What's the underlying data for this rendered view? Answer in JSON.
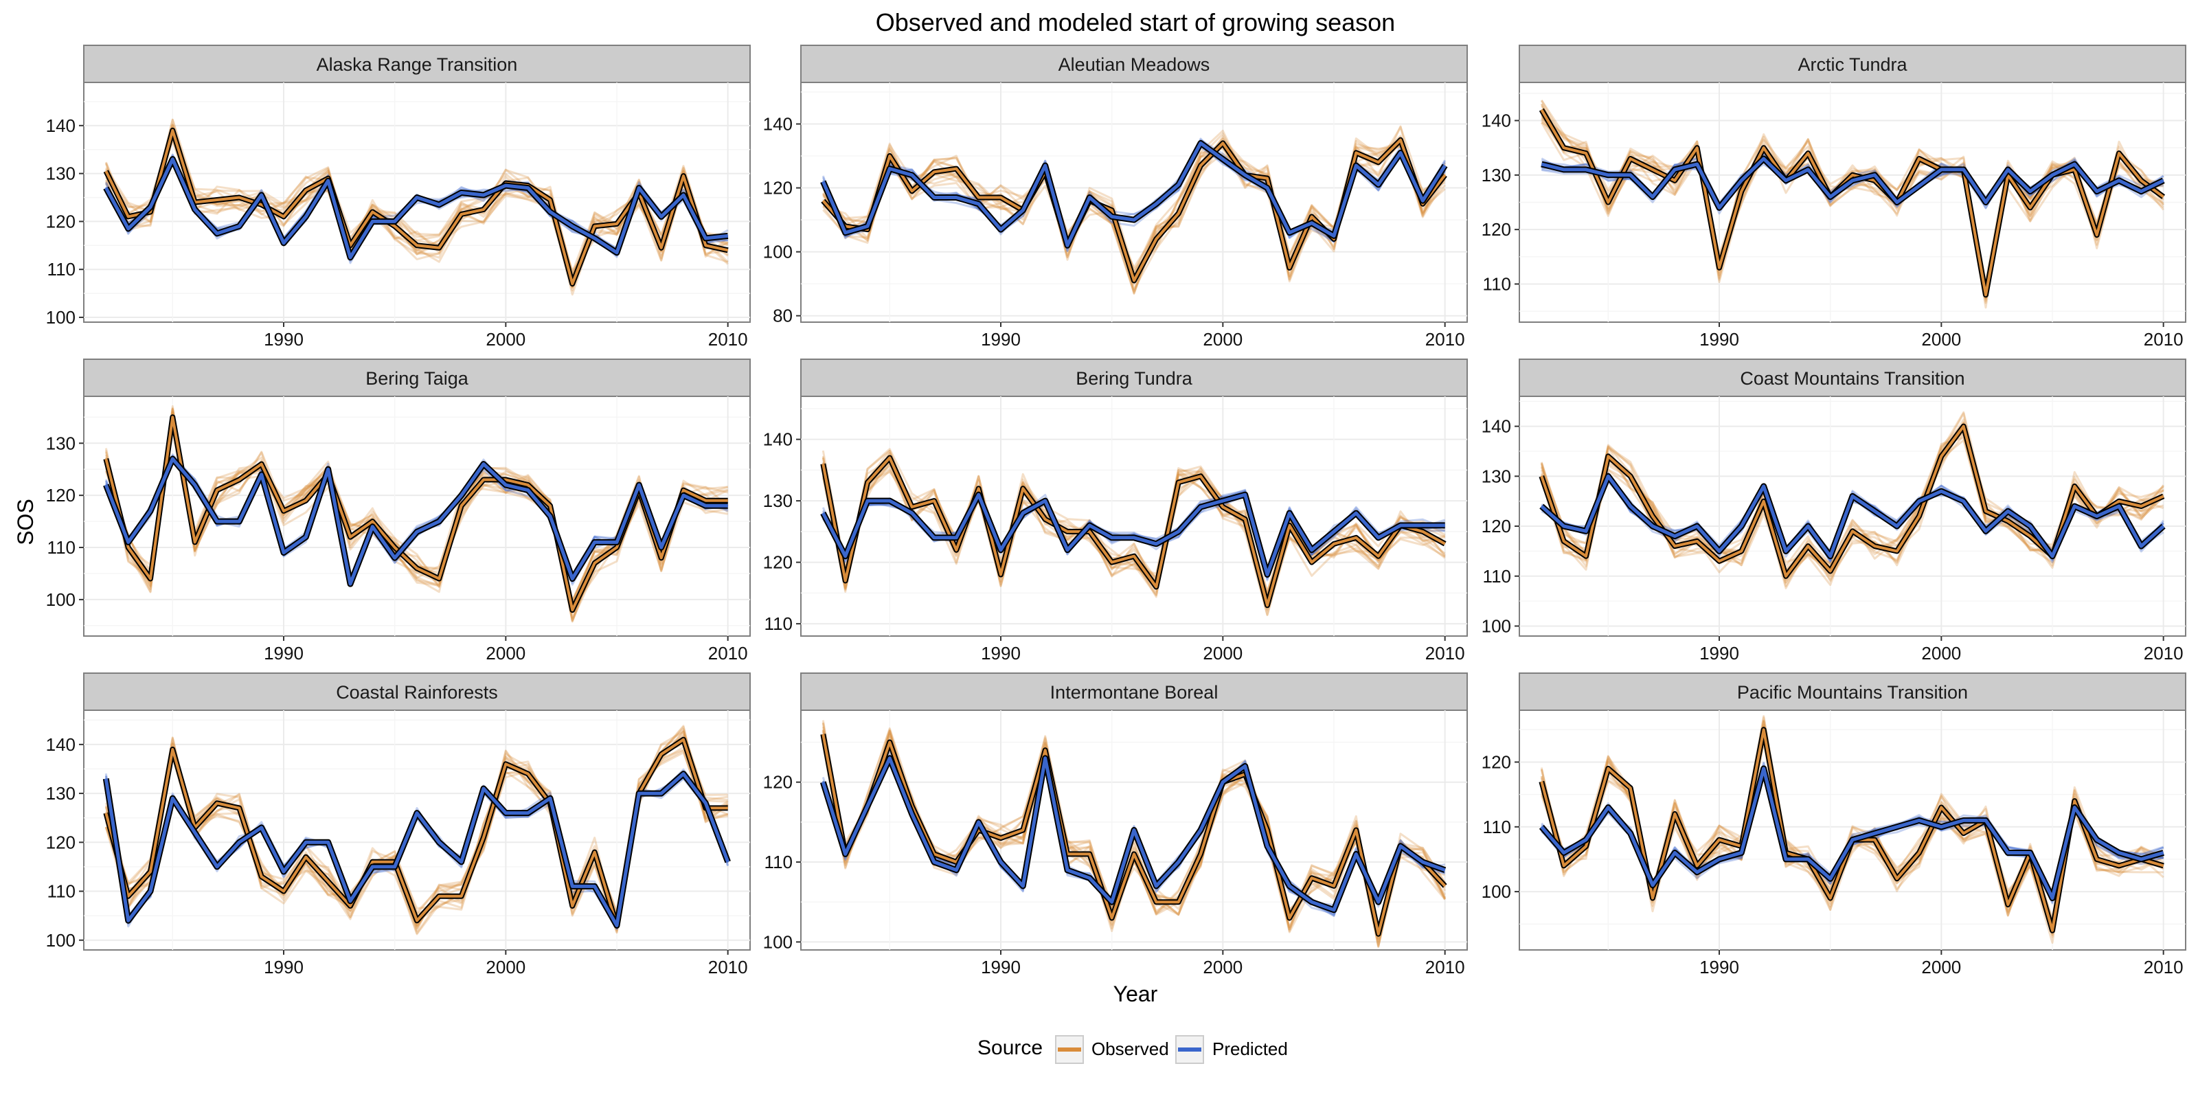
{
  "chart_data": {
    "type": "line",
    "title": "Observed and modeled start of growing season",
    "xlabel": "Year",
    "ylabel": "SOS",
    "legend": {
      "title": "Source",
      "position": "bottom",
      "entries": [
        {
          "name": "Observed",
          "color": "#d98c3a"
        },
        {
          "name": "Predicted",
          "color": "#3a66cc"
        }
      ]
    },
    "colors": {
      "observed": "#d98c3a",
      "predicted": "#3a66cc",
      "mean_outline": "#000000"
    },
    "years": [
      1982,
      1983,
      1984,
      1985,
      1986,
      1987,
      1988,
      1989,
      1990,
      1991,
      1992,
      1993,
      1994,
      1995,
      1996,
      1997,
      1998,
      1999,
      2000,
      2001,
      2002,
      2003,
      2004,
      2005,
      2006,
      2007,
      2008,
      2009,
      2010
    ],
    "xlim": [
      1981,
      2011
    ],
    "xticks": [
      1990,
      2000,
      2010
    ],
    "panels": [
      {
        "name": "Alaska Range Transition",
        "ylim": [
          99,
          149
        ],
        "yticks": [
          100,
          110,
          120,
          130,
          140
        ],
        "observed": [
          130.5,
          121,
          122,
          139,
          124,
          124.5,
          125,
          123.5,
          121,
          126.5,
          129,
          115,
          122,
          119,
          115,
          114.5,
          121.5,
          122.5,
          128,
          127.5,
          124.5,
          107,
          119,
          119.5,
          126,
          114.5,
          129.5,
          115,
          114
        ],
        "predicted": [
          127,
          118.5,
          123,
          133,
          122.5,
          117.5,
          119,
          125.5,
          115.5,
          121,
          128.5,
          112.5,
          120,
          120,
          125,
          123.5,
          126,
          125.5,
          127.5,
          127,
          122,
          119,
          116.5,
          113.5,
          127,
          121,
          125.5,
          116.5,
          117
        ]
      },
      {
        "name": "Aleutian Meadows",
        "ylim": [
          78,
          153
        ],
        "yticks": [
          80,
          100,
          120,
          140
        ],
        "observed": [
          116,
          108,
          107,
          130,
          119,
          125,
          126,
          117,
          117,
          113,
          125,
          102,
          116,
          113,
          91,
          104,
          112,
          127,
          134,
          124,
          123,
          95,
          111,
          104,
          131,
          128,
          135,
          115,
          124
        ],
        "predicted": [
          122,
          106,
          108,
          126,
          124,
          117,
          117,
          115,
          107,
          113,
          127,
          102,
          117,
          111,
          110,
          115,
          121,
          134,
          129,
          124,
          120,
          106,
          109,
          105,
          127,
          121,
          131,
          116,
          127
        ]
      },
      {
        "name": "Arctic Tundra",
        "ylim": [
          103,
          147
        ],
        "yticks": [
          110,
          120,
          130,
          140
        ],
        "observed": [
          142,
          135,
          134,
          125,
          133,
          131,
          129,
          135,
          113,
          127,
          135,
          129,
          134,
          126,
          130,
          129,
          125,
          133,
          131,
          131,
          108,
          130,
          124,
          130,
          131,
          119,
          134,
          129,
          126
        ],
        "predicted": [
          132,
          131,
          131,
          130,
          130,
          126,
          131,
          132,
          124,
          129,
          133,
          129,
          131,
          126,
          129,
          130,
          125,
          128,
          131,
          131,
          125,
          131,
          127,
          130,
          132,
          127,
          129,
          127,
          129
        ]
      },
      {
        "name": "Bering Taiga",
        "ylim": [
          93,
          139
        ],
        "yticks": [
          100,
          110,
          120,
          130
        ],
        "observed": [
          127,
          110,
          104,
          135,
          111,
          121,
          123,
          126,
          117,
          119,
          124,
          112,
          115,
          110,
          106,
          104,
          118,
          123,
          123,
          122,
          118,
          98,
          107,
          110,
          121,
          108,
          121,
          119,
          119
        ],
        "predicted": [
          122,
          111,
          117,
          127,
          122,
          115,
          115,
          124,
          109,
          112,
          125,
          103,
          114,
          108,
          113,
          115,
          120,
          126,
          122,
          121,
          116,
          104,
          111,
          111,
          122,
          110,
          120,
          118,
          118
        ]
      },
      {
        "name": "Bering Tundra",
        "ylim": [
          108,
          147
        ],
        "yticks": [
          110,
          120,
          130,
          140
        ],
        "observed": [
          136,
          117,
          133,
          137,
          129,
          130,
          122,
          132,
          118,
          132,
          127,
          125,
          125,
          120,
          121,
          116,
          133,
          134,
          129,
          127,
          113,
          126,
          120,
          123,
          124,
          121,
          126,
          125,
          123
        ],
        "predicted": [
          128,
          121,
          130,
          130,
          128,
          124,
          124,
          131,
          122,
          128,
          130,
          122,
          126,
          124,
          124,
          123,
          125,
          129,
          130,
          131,
          118,
          128,
          122,
          125,
          128,
          124,
          126,
          126,
          126
        ]
      },
      {
        "name": "Coast Mountains Transition",
        "ylim": [
          98,
          146
        ],
        "yticks": [
          100,
          110,
          120,
          130,
          140
        ],
        "observed": [
          130,
          117,
          114,
          134,
          130,
          122,
          116,
          117,
          113,
          115,
          125,
          110,
          116,
          111,
          119,
          116,
          115,
          122,
          134,
          140,
          123,
          121,
          118,
          114,
          128,
          122,
          125,
          124,
          126
        ],
        "predicted": [
          124,
          120,
          119,
          130,
          124,
          120,
          118,
          120,
          115,
          120,
          128,
          115,
          120,
          114,
          126,
          123,
          120,
          125,
          127,
          125,
          119,
          123,
          120,
          114,
          124,
          122,
          124,
          116,
          120
        ]
      },
      {
        "name": "Coastal Rainforests",
        "ylim": [
          98,
          147
        ],
        "yticks": [
          100,
          110,
          120,
          130,
          140
        ],
        "observed": [
          126,
          109,
          114,
          139,
          123,
          128,
          127,
          113,
          110,
          117,
          112,
          107,
          116,
          116,
          104,
          109,
          109,
          121,
          136,
          134,
          128,
          107,
          118,
          103,
          130,
          138,
          141,
          127,
          127
        ],
        "predicted": [
          133,
          104,
          110,
          129,
          122,
          115,
          120,
          123,
          114,
          120,
          120,
          108,
          115,
          115,
          126,
          120,
          116,
          131,
          126,
          126,
          129,
          111,
          111,
          103,
          130,
          130,
          134,
          128,
          116
        ]
      },
      {
        "name": "Intermontane Boreal",
        "ylim": [
          99,
          129
        ],
        "yticks": [
          100,
          110,
          120
        ],
        "observed": [
          126,
          111,
          117,
          125,
          117,
          111,
          110,
          114,
          113,
          114,
          124,
          111,
          111,
          103,
          111,
          105,
          105,
          111,
          120,
          121,
          114,
          103,
          108,
          107,
          114,
          101,
          112,
          110,
          107
        ],
        "predicted": [
          120,
          111,
          117,
          123,
          116,
          110,
          109,
          115,
          110,
          107,
          123,
          109,
          108,
          105,
          114,
          107,
          110,
          114,
          120,
          122,
          112,
          107,
          105,
          104,
          111,
          105,
          112,
          110,
          109
        ]
      },
      {
        "name": "Pacific Mountains Transition",
        "ylim": [
          91,
          128
        ],
        "yticks": [
          100,
          110,
          120
        ],
        "observed": [
          117,
          104,
          107,
          119,
          116,
          99,
          112,
          104,
          108,
          107,
          125,
          106,
          105,
          99,
          108,
          108,
          102,
          106,
          113,
          109,
          111,
          98,
          106,
          94,
          114,
          105,
          104,
          105,
          104
        ],
        "predicted": [
          110,
          106,
          108,
          113,
          109,
          101,
          106,
          103,
          105,
          106,
          119,
          105,
          105,
          102,
          108,
          109,
          110,
          111,
          110,
          111,
          111,
          106,
          106,
          99,
          113,
          108,
          106,
          105,
          106
        ]
      }
    ]
  }
}
